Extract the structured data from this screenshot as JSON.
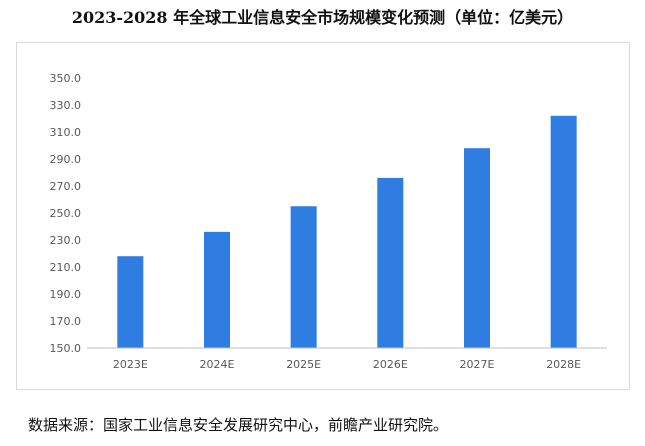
{
  "title": "2023-2028 年全球工业信息安全市场规模变化预测（单位：亿美元）",
  "source": "数据来源：国家工业信息安全发展研究中心，前瞻产业研究院。",
  "colors": {
    "bar": "#2f7de1",
    "axis": "#bfbfbf",
    "text": "#595959"
  },
  "chart_data": {
    "type": "bar",
    "title": "2023-2028 年全球工业信息安全市场规模变化预测（单位：亿美元）",
    "categories": [
      "2023E",
      "2024E",
      "2025E",
      "2026E",
      "2027E",
      "2028E"
    ],
    "values": [
      218.0,
      236.0,
      255.0,
      276.0,
      298.0,
      322.0
    ],
    "yticks": [
      "150.0",
      "170.0",
      "190.0",
      "210.0",
      "230.0",
      "250.0",
      "270.0",
      "290.0",
      "310.0",
      "330.0",
      "350.0"
    ],
    "ylim": [
      150,
      350
    ],
    "xlabel": "",
    "ylabel": "",
    "grid": false,
    "legend": "none"
  }
}
